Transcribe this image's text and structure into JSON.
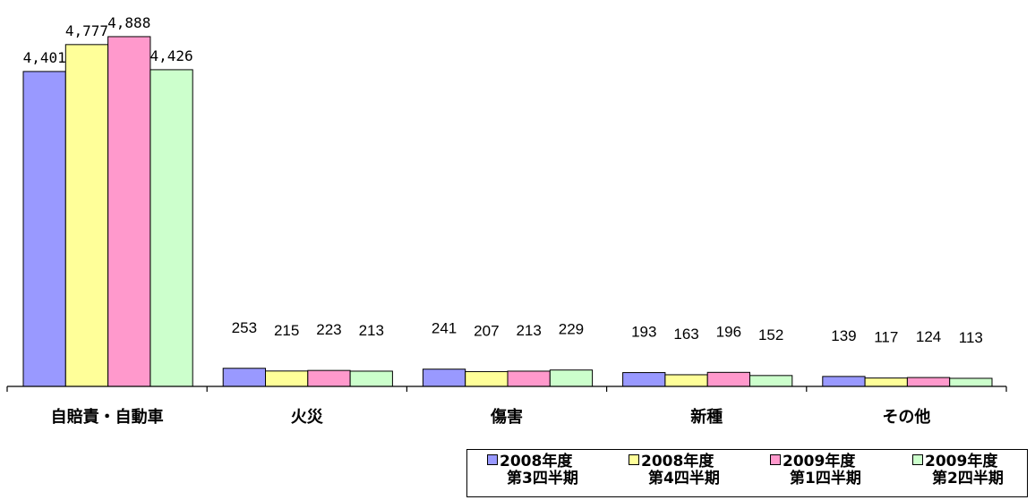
{
  "chart_data": {
    "type": "bar",
    "categories": [
      "自賠責・自動車",
      "火災",
      "傷害",
      "新種",
      "その他"
    ],
    "series": [
      {
        "name": "2008年度 第3四半期",
        "line1": "2008年度",
        "line2": "第3四半期",
        "color": "#9999ff",
        "values": [
          4401,
          253,
          241,
          193,
          139
        ]
      },
      {
        "name": "2008年度 第4四半期",
        "line1": "2008年度",
        "line2": "第4四半期",
        "color": "#ffff99",
        "values": [
          4777,
          215,
          207,
          163,
          117
        ]
      },
      {
        "name": "2009年度 第1四半期",
        "line1": "2009年度",
        "line2": "第1四半期",
        "color": "#ff99cc",
        "values": [
          4888,
          223,
          213,
          196,
          124
        ]
      },
      {
        "name": "2009年度 第2四半期",
        "line1": "2009年度",
        "line2": "第2四半期",
        "color": "#ccffcc",
        "values": [
          4426,
          213,
          229,
          152,
          113
        ]
      }
    ],
    "data_labels": [
      [
        "4,401",
        "4,777",
        "4,888",
        "4,426"
      ],
      [
        "253",
        "215",
        "223",
        "213"
      ],
      [
        "241",
        "207",
        "213",
        "229"
      ],
      [
        "193",
        "163",
        "196",
        "152"
      ],
      [
        "139",
        "117",
        "124",
        "113"
      ]
    ],
    "ylim": [
      0,
      5000
    ],
    "grid": false,
    "legend_position": "bottom-right",
    "title": "",
    "xlabel": "",
    "ylabel": ""
  }
}
